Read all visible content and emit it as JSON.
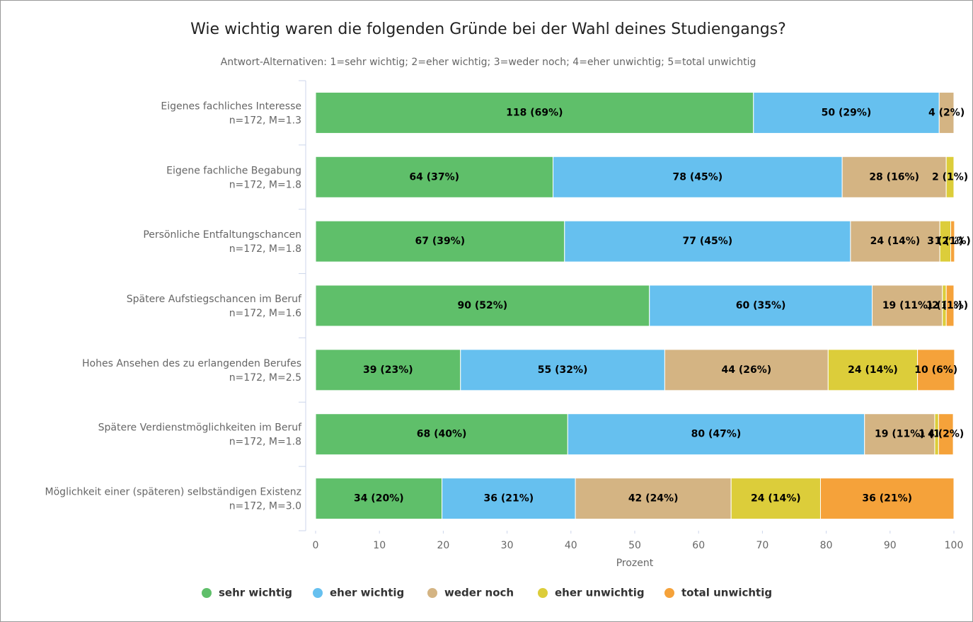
{
  "chart_data": {
    "type": "stacked-bar-horizontal",
    "title": "Wie wichtig waren die folgenden Gründe bei der Wahl deines Studiengangs?",
    "subtitle": "Antwort-Alternativen: 1=sehr wichtig; 2=eher wichtig; 3=weder noch; 4=eher unwichtig; 5=total unwichtig",
    "x_label": "Prozent",
    "categories": [
      "Eigenes fachliches Interesse",
      "Eigene fachliche Begabung",
      "Persönliche Entfaltungschancen",
      "Spätere Aufstiegschancen im Beruf",
      "Hohes Ansehen des zu erlangenden Berufes",
      "Spätere Verdienstmöglichkeiten im Beruf",
      "Möglichkeit einer (späteren) selbständigen Existenz"
    ],
    "category_notes": [
      "n=172, M=1.3",
      "n=172, M=1.8",
      "n=172, M=1.8",
      "n=172, M=1.6",
      "n=172, M=2.5",
      "n=172, M=1.8",
      "n=172, M=3.0"
    ],
    "series": [
      {
        "name": "sehr wichtig",
        "color": "#5fbf6a",
        "values": [
          68.6,
          37.2,
          39.0,
          52.3,
          22.7,
          39.5,
          19.8
        ],
        "value_labels": [
          "118 (69%)",
          "64 (37%)",
          "67 (39%)",
          "90 (52%)",
          "39 (23%)",
          "68 (40%)",
          "34 (20%)"
        ]
      },
      {
        "name": "eher wichtig",
        "color": "#66c0ef",
        "values": [
          29.1,
          45.3,
          44.8,
          34.9,
          32.0,
          46.5,
          20.9
        ],
        "value_labels": [
          "50 (29%)",
          "78 (45%)",
          "77 (45%)",
          "60 (35%)",
          "55 (32%)",
          "80 (47%)",
          "36 (21%)"
        ]
      },
      {
        "name": "weder noch",
        "color": "#d4b483",
        "values": [
          2.3,
          16.3,
          14.0,
          11.0,
          25.6,
          11.0,
          24.4
        ],
        "value_labels": [
          "4 (2%)",
          "28 (16%)",
          "24 (14%)",
          "19 (11%)",
          "44 (26%)",
          "19 (11%)",
          "42 (24%)"
        ]
      },
      {
        "name": "eher unwichtig",
        "color": "#dccd3a",
        "values": [
          0,
          1.2,
          1.7,
          0.6,
          14.0,
          0.6,
          14.0
        ],
        "value_labels": [
          null,
          "2 (1%)",
          "3 (2%)",
          "1 (1%)",
          "24 (14%)",
          "1 (1%)",
          "24 (14%)"
        ]
      },
      {
        "name": "total unwichtig",
        "color": "#f5a23a",
        "values": [
          0,
          0,
          0.6,
          1.2,
          5.8,
          2.3,
          20.9
        ],
        "value_labels": [
          null,
          null,
          "1 (1%)",
          "2 (1%)",
          "10 (6%)",
          "4 (2%)",
          "36 (21%)"
        ]
      }
    ],
    "xlim": [
      0,
      100
    ],
    "xticks": [
      0,
      10,
      20,
      30,
      40,
      50,
      60,
      70,
      80,
      90,
      100
    ]
  }
}
